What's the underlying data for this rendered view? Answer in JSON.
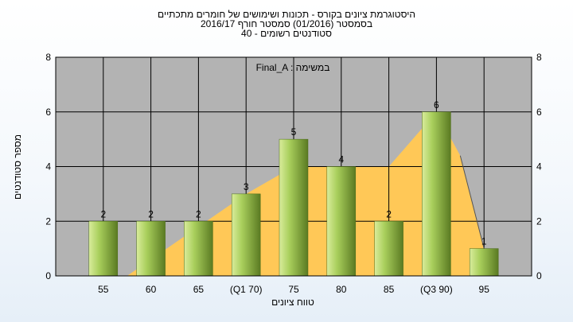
{
  "chart_data": {
    "type": "bar",
    "title_lines": [
      "היסטוגרמת ציונים בקורס - תכונות ושימושים של חומרים מתכתיים",
      "בסמסטר  (01/2016)  סמסטר חורף 2016/17",
      "סטודנטים רשומים - 40"
    ],
    "annotation": "Final_A : במשימה",
    "xlabel": "טווח ציונים",
    "ylabel": "מספר סטודנטים",
    "categories": [
      "55",
      "60",
      "65",
      "(Q1 70)",
      "75",
      "80",
      "85",
      "(Q3 90)",
      "95"
    ],
    "values": [
      2,
      2,
      2,
      3,
      5,
      4,
      2,
      6,
      1
    ],
    "ylim": [
      0,
      8
    ],
    "yticks": [
      0,
      2,
      4,
      6,
      8
    ],
    "area": {
      "x_start": 0.5,
      "y_start": 0,
      "points": [
        [
          3,
          3
        ],
        [
          4,
          4
        ],
        [
          5,
          4
        ],
        [
          6,
          4
        ],
        [
          7,
          6
        ],
        [
          7.5,
          4.4
        ],
        [
          8,
          1
        ]
      ]
    },
    "colors": {
      "plot_bg": "#b3b3b3",
      "area": "#ffc857",
      "bar_light": "#c8e08a",
      "bar_dark": "#5f7f25"
    },
    "grid": true
  }
}
